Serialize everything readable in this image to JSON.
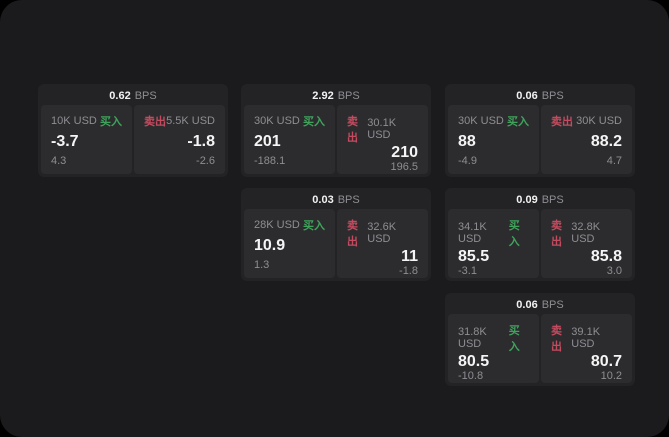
{
  "colors": {
    "outer_bg": "#000000",
    "window_bg": "#1b1b1d",
    "card_bg": "#232325",
    "panel_bg": "#2c2c2e",
    "text_primary": "#f5f5f6",
    "text_secondary": "#8e8e93",
    "buy_green": "#3fa35c",
    "sell_red": "#c44b5f"
  },
  "labels": {
    "buy": "买入",
    "sell": "卖出",
    "bps": "BPS"
  },
  "cards": [
    {
      "bps": "0.62",
      "buy": {
        "size": "10K USD",
        "price": "-3.7",
        "delta": "4.3"
      },
      "sell": {
        "size": "5.5K USD",
        "price": "-1.8",
        "delta": "-2.6"
      }
    },
    {
      "bps": "2.92",
      "buy": {
        "size": "30K USD",
        "price": "201",
        "delta": "-188.1"
      },
      "sell": {
        "size": "30.1K USD",
        "price": "210",
        "delta": "196.5"
      }
    },
    {
      "bps": "0.06",
      "buy": {
        "size": "30K USD",
        "price": "88",
        "delta": "-4.9"
      },
      "sell": {
        "size": "30K USD",
        "price": "88.2",
        "delta": "4.7"
      }
    },
    {
      "bps": "0.03",
      "buy": {
        "size": "28K USD",
        "price": "10.9",
        "delta": "1.3"
      },
      "sell": {
        "size": "32.6K USD",
        "price": "11",
        "delta": "-1.8"
      }
    },
    {
      "bps": "0.09",
      "buy": {
        "size": "34.1K USD",
        "price": "85.5",
        "delta": "-3.1"
      },
      "sell": {
        "size": "32.8K USD",
        "price": "85.8",
        "delta": "3.0"
      }
    },
    {
      "bps": "0.06",
      "buy": {
        "size": "31.8K USD",
        "price": "80.5",
        "delta": "-10.8"
      },
      "sell": {
        "size": "39.1K USD",
        "price": "80.7",
        "delta": "10.2"
      }
    }
  ]
}
